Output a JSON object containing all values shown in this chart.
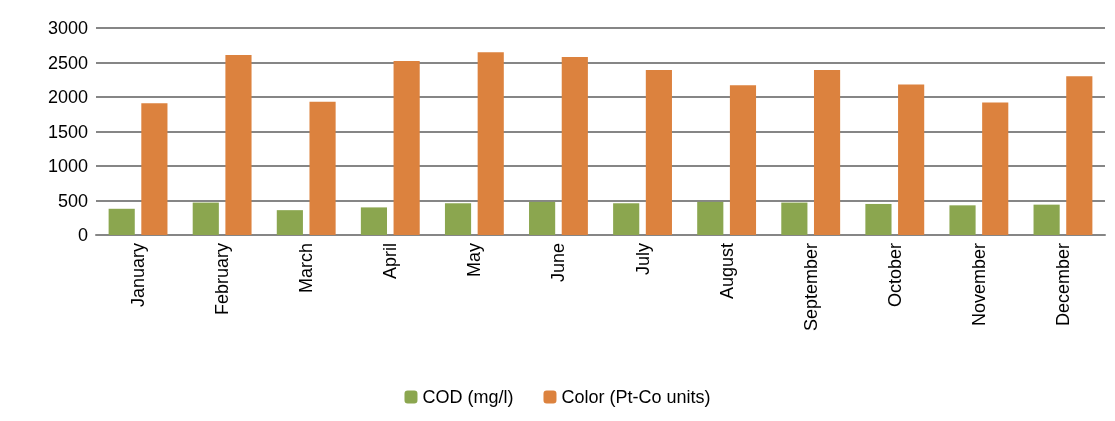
{
  "chart_data": {
    "type": "bar",
    "categories": [
      "January",
      "February",
      "March",
      "April",
      "May",
      "June",
      "July",
      "August",
      "September",
      "October",
      "November",
      "December"
    ],
    "series": [
      {
        "name": "COD (mg/l)",
        "color": "#8ba64f",
        "values": [
          380,
          470,
          360,
          400,
          460,
          480,
          460,
          480,
          470,
          450,
          430,
          440
        ]
      },
      {
        "name": "Color (Pt-Co units)",
        "color": "#dc823e",
        "values": [
          1910,
          2610,
          1930,
          2520,
          2650,
          2580,
          2390,
          2170,
          2390,
          2180,
          1920,
          2300
        ]
      }
    ],
    "ylim": [
      0,
      3000
    ],
    "yticks": [
      0,
      500,
      1000,
      1500,
      2000,
      2500,
      3000
    ],
    "grid": "y",
    "legend": "bottom"
  }
}
